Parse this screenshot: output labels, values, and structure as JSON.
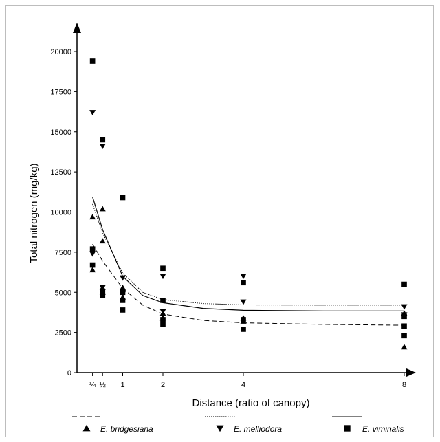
{
  "chart_data": {
    "type": "scatter",
    "title": "",
    "xlabel": "Distance (ratio of canopy)",
    "ylabel": "Total nitrogen (mg/kg)",
    "xlim": [
      0,
      8.5
    ],
    "ylim": [
      0,
      20000
    ],
    "x_ticks": [
      {
        "value": 0.25,
        "label": "¼"
      },
      {
        "value": 0.5,
        "label": "½"
      },
      {
        "value": 1,
        "label": "1"
      },
      {
        "value": 2,
        "label": "2"
      },
      {
        "value": 4,
        "label": "4"
      },
      {
        "value": 8,
        "label": "8"
      }
    ],
    "y_ticks": [
      0,
      2500,
      5000,
      7500,
      10000,
      12500,
      15000,
      17500,
      20000
    ],
    "legend_position": "bottom",
    "series": [
      {
        "name": "E. bridgesiana",
        "marker": "triangle-up",
        "line_style": "dashed",
        "points": [
          [
            0.25,
            9700
          ],
          [
            0.25,
            6400
          ],
          [
            0.5,
            10200
          ],
          [
            0.5,
            8200
          ],
          [
            0.5,
            5300
          ],
          [
            0.5,
            5000
          ],
          [
            1,
            5300
          ],
          [
            1,
            4700
          ],
          [
            2,
            3700
          ],
          [
            2,
            3400
          ],
          [
            4,
            3400
          ],
          [
            4,
            3200
          ],
          [
            8,
            3700
          ],
          [
            8,
            1600
          ]
        ],
        "fit": [
          [
            0.25,
            8000
          ],
          [
            0.5,
            6950
          ],
          [
            1,
            5250
          ],
          [
            1.5,
            4200
          ],
          [
            2,
            3650
          ],
          [
            3,
            3250
          ],
          [
            4,
            3100
          ],
          [
            6,
            3000
          ],
          [
            8,
            2950
          ]
        ]
      },
      {
        "name": "E. melliodora",
        "marker": "triangle-down",
        "line_style": "dotted",
        "points": [
          [
            0.25,
            16200
          ],
          [
            0.25,
            7400
          ],
          [
            0.5,
            14100
          ],
          [
            0.5,
            5300
          ],
          [
            1,
            5900
          ],
          [
            1,
            4900
          ],
          [
            2,
            6000
          ],
          [
            2,
            3800
          ],
          [
            4,
            6000
          ],
          [
            4,
            4400
          ],
          [
            8,
            4100
          ],
          [
            8,
            3600
          ]
        ],
        "fit": [
          [
            0.25,
            10500
          ],
          [
            0.5,
            8700
          ],
          [
            1,
            6200
          ],
          [
            1.5,
            5000
          ],
          [
            2,
            4550
          ],
          [
            3,
            4300
          ],
          [
            4,
            4220
          ],
          [
            6,
            4200
          ],
          [
            8,
            4200
          ]
        ]
      },
      {
        "name": "E. viminalis",
        "marker": "square",
        "line_style": "solid",
        "points": [
          [
            0.25,
            19400
          ],
          [
            0.25,
            7700
          ],
          [
            0.25,
            6700
          ],
          [
            0.5,
            14500
          ],
          [
            0.5,
            5000
          ],
          [
            0.5,
            4800
          ],
          [
            1,
            10900
          ],
          [
            1,
            5000
          ],
          [
            1,
            4500
          ],
          [
            1,
            3900
          ],
          [
            2,
            6500
          ],
          [
            2,
            4500
          ],
          [
            2,
            3300
          ],
          [
            2,
            3000
          ],
          [
            4,
            5600
          ],
          [
            4,
            3300
          ],
          [
            4,
            2700
          ],
          [
            8,
            5500
          ],
          [
            8,
            3500
          ],
          [
            8,
            2900
          ],
          [
            8,
            2300
          ]
        ],
        "fit": [
          [
            0.25,
            10950
          ],
          [
            0.5,
            8900
          ],
          [
            1,
            6000
          ],
          [
            1.5,
            4800
          ],
          [
            2,
            4350
          ],
          [
            3,
            4000
          ],
          [
            4,
            3880
          ],
          [
            6,
            3840
          ],
          [
            8,
            3840
          ]
        ]
      }
    ]
  }
}
